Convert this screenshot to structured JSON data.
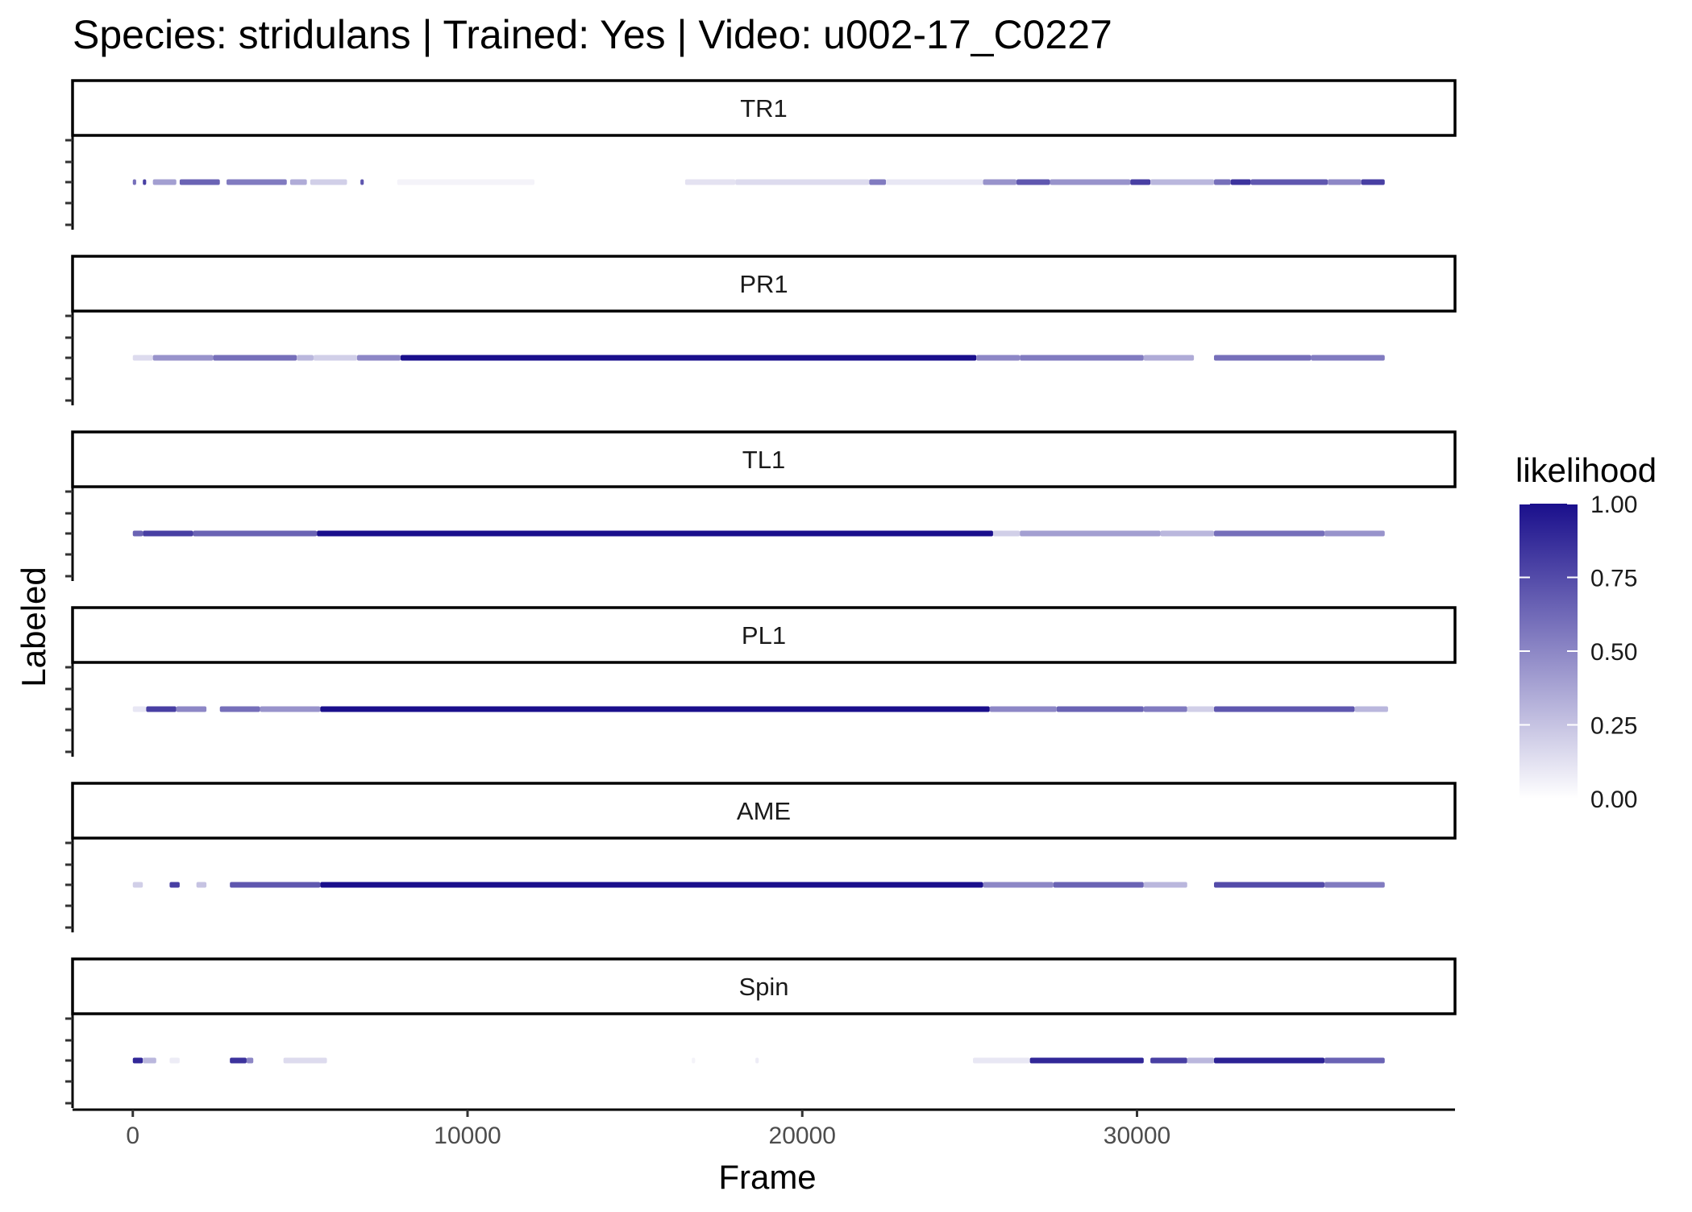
{
  "chart_data": {
    "type": "scatter",
    "title": "Species: stridulans | Trained: Yes | Video: u002-17_C0227",
    "xlabel": "Frame",
    "ylabel": "Labeled",
    "xlim": [
      -1800,
      39500
    ],
    "x_ticks": [
      0,
      10000,
      20000,
      30000
    ],
    "x_tick_labels": [
      "0",
      "10000",
      "20000",
      "30000"
    ],
    "facet_labels": [
      "TR1",
      "PR1",
      "TL1",
      "PL1",
      "AME",
      "Spin"
    ],
    "color_scale": {
      "title": "likelihood",
      "low_color": "#ffffff",
      "high_color": "#1a0f8c",
      "ticks": [
        1.0,
        0.75,
        0.5,
        0.25,
        0.0
      ],
      "tick_labels": [
        "1.00",
        "0.75",
        "0.50",
        "0.25",
        "0.00"
      ]
    },
    "grid": false,
    "legend_position": "right",
    "series": [
      {
        "facet": "TR1",
        "segments": [
          [
            0,
            100,
            0.6
          ],
          [
            300,
            400,
            0.8
          ],
          [
            600,
            1300,
            0.4
          ],
          [
            1400,
            2600,
            0.65
          ],
          [
            2800,
            4600,
            0.55
          ],
          [
            4700,
            5200,
            0.35
          ],
          [
            5300,
            6400,
            0.2
          ],
          [
            6800,
            6900,
            0.7
          ],
          [
            7900,
            12000,
            0.05
          ],
          [
            16500,
            18000,
            0.12
          ],
          [
            18000,
            22000,
            0.15
          ],
          [
            22000,
            22500,
            0.55
          ],
          [
            22500,
            25400,
            0.1
          ],
          [
            25400,
            26400,
            0.45
          ],
          [
            26400,
            27400,
            0.7
          ],
          [
            27400,
            29800,
            0.45
          ],
          [
            29800,
            30400,
            0.8
          ],
          [
            30400,
            32300,
            0.3
          ],
          [
            32300,
            32800,
            0.6
          ],
          [
            32800,
            33400,
            0.85
          ],
          [
            33400,
            35700,
            0.7
          ],
          [
            35700,
            36700,
            0.5
          ],
          [
            36700,
            37400,
            0.8
          ]
        ]
      },
      {
        "facet": "PR1",
        "segments": [
          [
            0,
            600,
            0.15
          ],
          [
            600,
            2400,
            0.45
          ],
          [
            2400,
            4900,
            0.6
          ],
          [
            4900,
            5400,
            0.3
          ],
          [
            5400,
            6700,
            0.2
          ],
          [
            6700,
            8000,
            0.5
          ],
          [
            8000,
            25200,
            1.0
          ],
          [
            25200,
            26500,
            0.5
          ],
          [
            26500,
            30200,
            0.55
          ],
          [
            30200,
            31700,
            0.35
          ],
          [
            32300,
            35200,
            0.6
          ],
          [
            35200,
            37400,
            0.55
          ]
        ]
      },
      {
        "facet": "TL1",
        "segments": [
          [
            0,
            300,
            0.65
          ],
          [
            300,
            1800,
            0.8
          ],
          [
            1800,
            5500,
            0.65
          ],
          [
            5500,
            25700,
            1.0
          ],
          [
            25700,
            26500,
            0.2
          ],
          [
            26500,
            30700,
            0.4
          ],
          [
            30700,
            32300,
            0.3
          ],
          [
            32300,
            35600,
            0.6
          ],
          [
            35600,
            37400,
            0.45
          ]
        ]
      },
      {
        "facet": "PL1",
        "segments": [
          [
            0,
            400,
            0.1
          ],
          [
            400,
            1300,
            0.8
          ],
          [
            1300,
            2200,
            0.5
          ],
          [
            2600,
            3800,
            0.6
          ],
          [
            3800,
            5600,
            0.45
          ],
          [
            5600,
            25600,
            1.0
          ],
          [
            25600,
            27600,
            0.5
          ],
          [
            27600,
            30200,
            0.65
          ],
          [
            30200,
            31500,
            0.55
          ],
          [
            31500,
            32300,
            0.2
          ],
          [
            32300,
            36500,
            0.7
          ],
          [
            36500,
            37500,
            0.3
          ]
        ]
      },
      {
        "facet": "AME",
        "segments": [
          [
            0,
            300,
            0.2
          ],
          [
            1100,
            1400,
            0.8
          ],
          [
            1900,
            2200,
            0.25
          ],
          [
            2900,
            5600,
            0.7
          ],
          [
            5600,
            25400,
            1.0
          ],
          [
            25400,
            27500,
            0.5
          ],
          [
            27500,
            30200,
            0.65
          ],
          [
            30200,
            31500,
            0.3
          ],
          [
            32300,
            35600,
            0.75
          ],
          [
            35600,
            37400,
            0.55
          ]
        ]
      },
      {
        "facet": "Spin",
        "segments": [
          [
            0,
            300,
            0.9
          ],
          [
            300,
            700,
            0.3
          ],
          [
            1100,
            1400,
            0.08
          ],
          [
            2900,
            3400,
            0.85
          ],
          [
            3400,
            3600,
            0.5
          ],
          [
            4500,
            5800,
            0.15
          ],
          [
            16700,
            16800,
            0.05
          ],
          [
            18600,
            18700,
            0.08
          ],
          [
            25100,
            26800,
            0.1
          ],
          [
            26800,
            30200,
            0.9
          ],
          [
            30400,
            31500,
            0.8
          ],
          [
            31500,
            32300,
            0.3
          ],
          [
            32300,
            35600,
            0.92
          ],
          [
            35600,
            37400,
            0.65
          ]
        ]
      }
    ]
  }
}
